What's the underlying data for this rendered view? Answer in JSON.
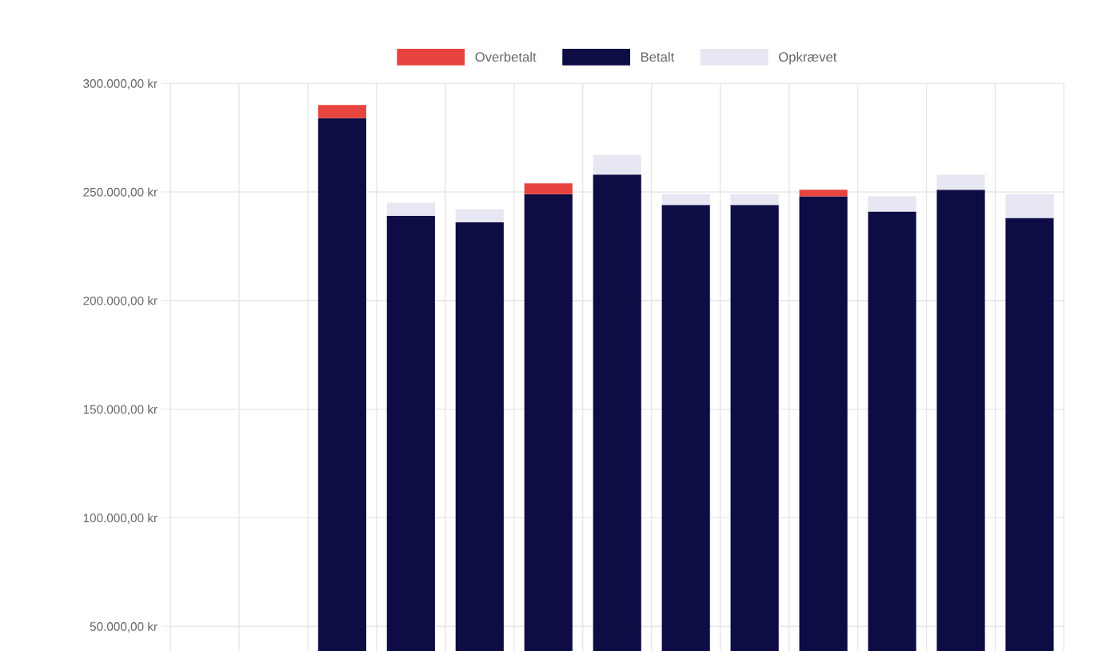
{
  "chart_data": {
    "type": "bar",
    "stacked": true,
    "categories": [
      null,
      null,
      null,
      null,
      null,
      null,
      null,
      null,
      null,
      null,
      null,
      null,
      null
    ],
    "series": [
      {
        "name": "Betalt",
        "color": "#0d0c45",
        "values": [
          null,
          null,
          284000,
          239000,
          236000,
          249000,
          258000,
          244000,
          244000,
          248000,
          241000,
          251000,
          238000
        ]
      },
      {
        "name": "Overbetalt",
        "color": "#e8443f",
        "values": [
          null,
          null,
          6000,
          null,
          null,
          5000,
          null,
          null,
          null,
          3000,
          null,
          null,
          null
        ]
      },
      {
        "name": "Opkrævet",
        "color": "#e6e7f2",
        "values": [
          null,
          null,
          null,
          6000,
          6000,
          null,
          9000,
          5000,
          5000,
          null,
          7000,
          7000,
          11000
        ]
      }
    ],
    "ylim": [
      0,
      300000
    ],
    "yticks": [
      {
        "value": 50000,
        "label": "50.000,00 kr"
      },
      {
        "value": 100000,
        "label": "100.000,00 kr"
      },
      {
        "value": 150000,
        "label": "150.000,00 kr"
      },
      {
        "value": 200000,
        "label": "200.000,00 kr"
      },
      {
        "value": 250000,
        "label": "250.000,00 kr"
      },
      {
        "value": 300000,
        "label": "300.000,00 kr"
      }
    ],
    "grid": true,
    "legend": "top",
    "tick_labels": "y"
  }
}
